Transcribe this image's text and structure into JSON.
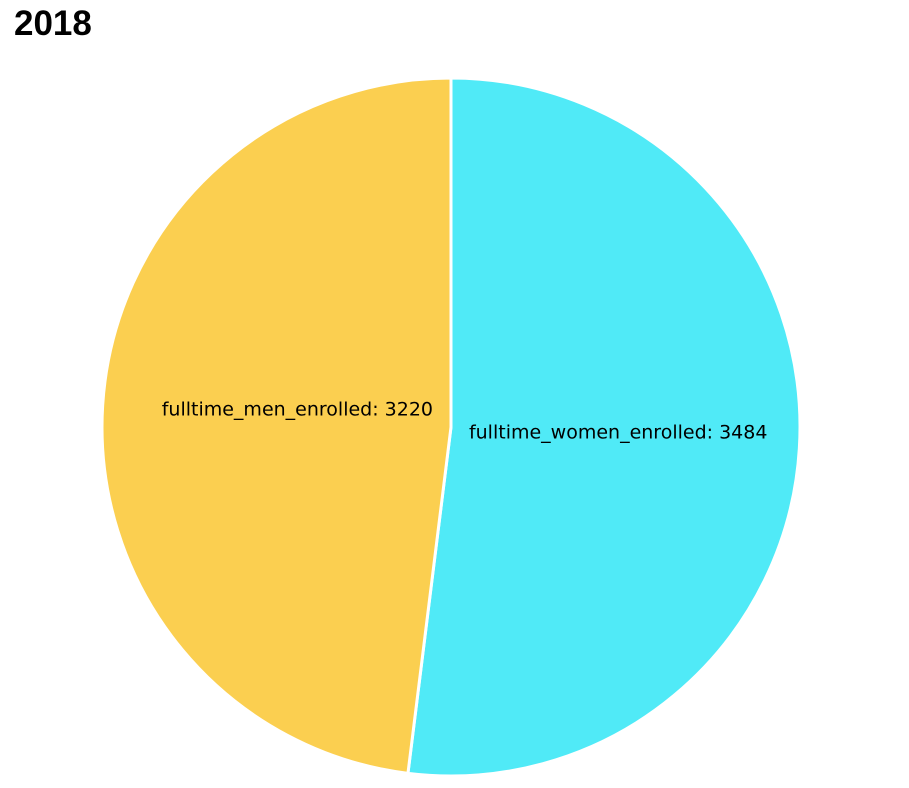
{
  "chart_data": {
    "type": "pie",
    "title": "2018",
    "slices": [
      {
        "label": "fulltime_women_enrolled",
        "value": 3484,
        "color": "#50EAF7"
      },
      {
        "label": "fulltime_men_enrolled",
        "value": 3220,
        "color": "#FBCF50"
      }
    ],
    "legend": "none",
    "data_labels": "inside"
  }
}
